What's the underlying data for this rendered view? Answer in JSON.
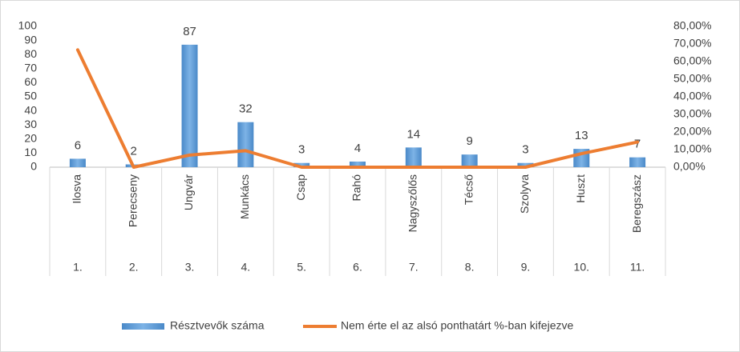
{
  "chart_data": {
    "type": "bar-line",
    "categories": [
      "Ilosva",
      "Perecseny",
      "Ungvár",
      "Munkács",
      "Csap",
      "Rahó",
      "Nagyszőlős",
      "Técső",
      "Szolyva",
      "Huszt",
      "Beregszász"
    ],
    "category_numbers": [
      "1.",
      "2.",
      "3.",
      "4.",
      "5.",
      "6.",
      "7.",
      "8.",
      "9.",
      "10.",
      "11."
    ],
    "series": [
      {
        "name": "Résztvevők száma",
        "color": "#5b9bd5",
        "type": "bar",
        "values": [
          6,
          2,
          87,
          32,
          3,
          4,
          14,
          9,
          3,
          13,
          7
        ]
      },
      {
        "name": "Nem érte el az alsó ponthatárt %-ban kifejezve",
        "color": "#ed7d31",
        "type": "line",
        "axis": "y2",
        "values": [
          66.67,
          0,
          6.9,
          9.38,
          0,
          0,
          0,
          0,
          0,
          7.69,
          14.29
        ]
      }
    ],
    "ylim": [
      0,
      100
    ],
    "yticks": [
      0,
      10,
      20,
      30,
      40,
      50,
      60,
      70,
      80,
      90,
      100
    ],
    "y2lim": [
      0,
      80
    ],
    "y2ticks": [
      {
        "value": 0,
        "label": "0,00%"
      },
      {
        "value": 10,
        "label": "10,00%"
      },
      {
        "value": 20,
        "label": "20,00%"
      },
      {
        "value": 30,
        "label": "30,00%"
      },
      {
        "value": 40,
        "label": "40,00%"
      },
      {
        "value": 50,
        "label": "50,00%"
      },
      {
        "value": 60,
        "label": "60,00%"
      },
      {
        "value": 70,
        "label": "70,00%"
      },
      {
        "value": 80,
        "label": "80,00%"
      }
    ],
    "legend": "bottom"
  }
}
